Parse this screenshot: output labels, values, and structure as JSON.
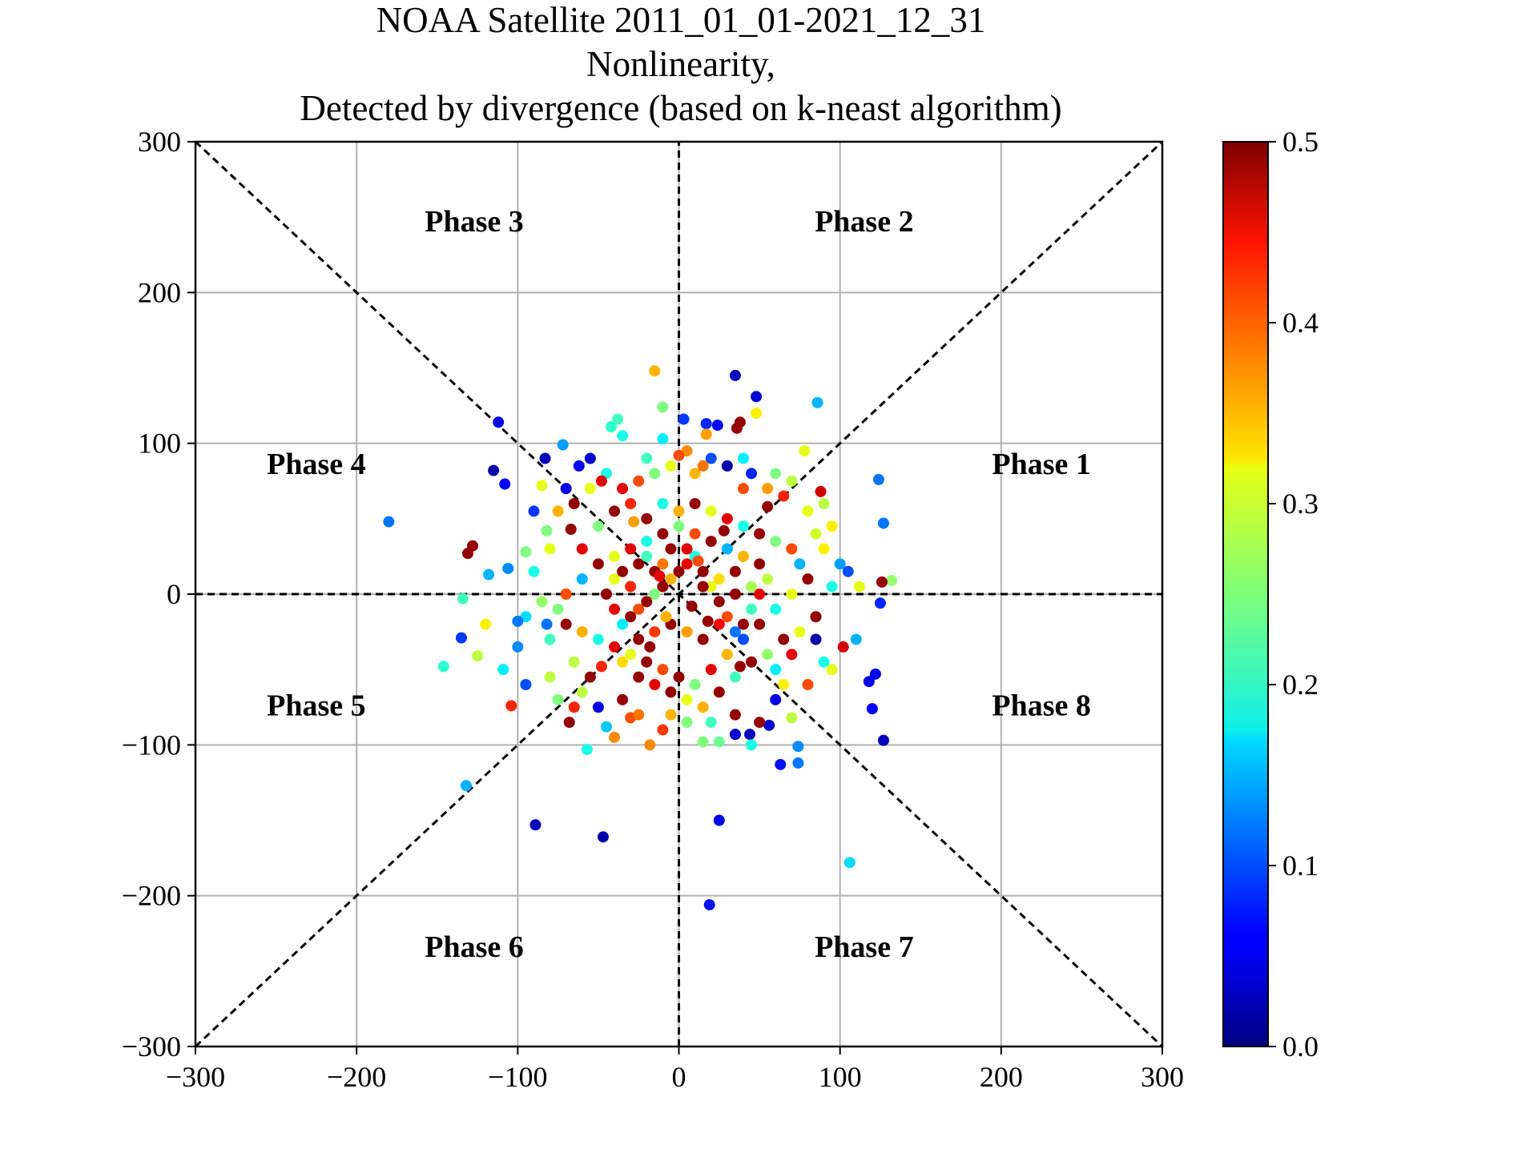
{
  "chart_data": {
    "type": "scatter",
    "title_lines": [
      "NOAA Satellite 2011_01_01-2021_12_31",
      "Nonlinearity,",
      "Detected by divergence (based on k-neast algorithm)"
    ],
    "xlabel": "",
    "ylabel": "",
    "xlim": [
      -300,
      300
    ],
    "ylim": [
      -300,
      300
    ],
    "xticks": [
      -300,
      -200,
      -100,
      0,
      100,
      200,
      300
    ],
    "yticks": [
      -300,
      -200,
      -100,
      0,
      100,
      200,
      300
    ],
    "tick_labels_x": [
      "−300",
      "−200",
      "−100",
      "0",
      "100",
      "200",
      "300"
    ],
    "tick_labels_y": [
      "−300",
      "−200",
      "−100",
      "0",
      "100",
      "200",
      "300"
    ],
    "grid": true,
    "colormap": "jet",
    "colorbar": {
      "range": [
        0.0,
        0.5
      ],
      "ticks": [
        0.0,
        0.1,
        0.2,
        0.3,
        0.4,
        0.5
      ],
      "tick_labels": [
        "0.0",
        "0.1",
        "0.2",
        "0.3",
        "0.4",
        "0.5"
      ]
    },
    "phase_labels": [
      {
        "label": "Phase 1",
        "x": 225,
        "y": 87
      },
      {
        "label": "Phase 2",
        "x": 115,
        "y": 248
      },
      {
        "label": "Phase 3",
        "x": -127,
        "y": 248
      },
      {
        "label": "Phase 4",
        "x": -225,
        "y": 87
      },
      {
        "label": "Phase 5",
        "x": -225,
        "y": -73
      },
      {
        "label": "Phase 6",
        "x": -127,
        "y": -233
      },
      {
        "label": "Phase 7",
        "x": 115,
        "y": -233
      },
      {
        "label": "Phase 8",
        "x": 225,
        "y": -73
      }
    ],
    "reference_lines": [
      {
        "x": [
          -300,
          300
        ],
        "y": [
          0,
          0
        ],
        "style": "dashed"
      },
      {
        "x": [
          0,
          0
        ],
        "y": [
          -300,
          300
        ],
        "style": "dashed"
      },
      {
        "x": [
          -300,
          300
        ],
        "y": [
          -300,
          300
        ],
        "style": "dashed"
      },
      {
        "x": [
          -300,
          300
        ],
        "y": [
          300,
          -300
        ],
        "style": "dashed"
      }
    ],
    "points": [
      [
        -180,
        48,
        0.12
      ],
      [
        -112,
        114,
        0.05
      ],
      [
        -115,
        82,
        0.02
      ],
      [
        -108,
        73,
        0.06
      ],
      [
        -83,
        90,
        0.03
      ],
      [
        -72,
        99,
        0.14
      ],
      [
        -62,
        85,
        0.06
      ],
      [
        35,
        145,
        0.03
      ],
      [
        48,
        131,
        0.04
      ],
      [
        86,
        127,
        0.15
      ],
      [
        -15,
        148,
        0.35
      ],
      [
        -10,
        124,
        0.25
      ],
      [
        -38,
        116,
        0.22
      ],
      [
        -42,
        111,
        0.21
      ],
      [
        -35,
        105,
        0.2
      ],
      [
        3,
        116,
        0.09
      ],
      [
        17,
        113,
        0.08
      ],
      [
        24,
        112,
        0.06
      ],
      [
        36,
        110,
        0.49
      ],
      [
        38,
        114,
        0.49
      ],
      [
        48,
        120,
        0.32
      ],
      [
        17,
        106,
        0.36
      ],
      [
        -10,
        103,
        0.18
      ],
      [
        5,
        95,
        0.37
      ],
      [
        78,
        95,
        0.3
      ],
      [
        88,
        68,
        0.46
      ],
      [
        124,
        76,
        0.12
      ],
      [
        127,
        47,
        0.12
      ],
      [
        132,
        9,
        0.26
      ],
      [
        126,
        8,
        0.49
      ],
      [
        125,
        -6,
        0.08
      ],
      [
        120,
        -76,
        0.06
      ],
      [
        122,
        -53,
        0.05
      ],
      [
        118,
        -58,
        0.05
      ],
      [
        127,
        -97,
        0.03
      ],
      [
        106,
        -178,
        0.17
      ],
      [
        74,
        -101,
        0.13
      ],
      [
        74,
        -112,
        0.12
      ],
      [
        63,
        -113,
        0.07
      ],
      [
        56,
        -87,
        0.04
      ],
      [
        44,
        -93,
        0.03
      ],
      [
        35,
        -93,
        0.04
      ],
      [
        25,
        -150,
        0.05
      ],
      [
        19,
        -206,
        0.07
      ],
      [
        -47,
        -161,
        0.02
      ],
      [
        -89,
        -153,
        0.03
      ],
      [
        -132,
        -127,
        0.15
      ],
      [
        -146,
        -48,
        0.21
      ],
      [
        -135,
        -29,
        0.09
      ],
      [
        -104,
        -74,
        0.42
      ],
      [
        -134,
        -3,
        0.22
      ],
      [
        -118,
        13,
        0.15
      ],
      [
        -106,
        17,
        0.13
      ],
      [
        -128,
        32,
        0.49
      ],
      [
        -131,
        27,
        0.49
      ],
      [
        -120,
        -20,
        0.32
      ],
      [
        -125,
        -41,
        0.28
      ],
      [
        -109,
        -50,
        0.18
      ],
      [
        -100,
        -35,
        0.13
      ],
      [
        -95,
        28,
        0.25
      ],
      [
        -85,
        72,
        0.3
      ],
      [
        -90,
        55,
        0.09
      ],
      [
        -67,
        43,
        0.49
      ],
      [
        -82,
        42,
        0.25
      ],
      [
        -95,
        -15,
        0.17
      ],
      [
        -82,
        -20,
        0.12
      ],
      [
        -68,
        -85,
        0.49
      ],
      [
        -57,
        -103,
        0.2
      ],
      [
        -40,
        -95,
        0.37
      ],
      [
        -18,
        -100,
        0.37
      ],
      [
        -60,
        -65,
        0.28
      ],
      [
        -45,
        -88,
        0.16
      ],
      [
        -30,
        -82,
        0.4
      ],
      [
        -10,
        -90,
        0.41
      ],
      [
        15,
        -98,
        0.25
      ],
      [
        25,
        -98,
        0.24
      ],
      [
        45,
        -100,
        0.2
      ],
      [
        70,
        -82,
        0.28
      ],
      [
        65,
        -60,
        0.32
      ],
      [
        80,
        -60,
        0.4
      ],
      [
        95,
        -50,
        0.3
      ],
      [
        102,
        -35,
        0.46
      ],
      [
        110,
        -30,
        0.15
      ],
      [
        100,
        20,
        0.14
      ],
      [
        90,
        30,
        0.32
      ],
      [
        105,
        15,
        0.1
      ],
      [
        112,
        5,
        0.3
      ],
      [
        95,
        5,
        0.2
      ],
      [
        85,
        40,
        0.29
      ],
      [
        95,
        45,
        0.32
      ],
      [
        70,
        75,
        0.28
      ],
      [
        60,
        80,
        0.25
      ],
      [
        45,
        80,
        0.08
      ],
      [
        40,
        70,
        0.4
      ],
      [
        30,
        85,
        0.02
      ],
      [
        20,
        90,
        0.1
      ],
      [
        10,
        80,
        0.35
      ],
      [
        -5,
        85,
        0.3
      ],
      [
        -15,
        80,
        0.25
      ],
      [
        -25,
        75,
        0.4
      ],
      [
        -35,
        70,
        0.45
      ],
      [
        -45,
        80,
        0.2
      ],
      [
        -55,
        70,
        0.3
      ],
      [
        -65,
        60,
        0.49
      ],
      [
        -75,
        55,
        0.35
      ],
      [
        -60,
        30,
        0.45
      ],
      [
        -50,
        45,
        0.25
      ],
      [
        -40,
        55,
        0.49
      ],
      [
        -30,
        60,
        0.42
      ],
      [
        -20,
        50,
        0.49
      ],
      [
        -10,
        60,
        0.2
      ],
      [
        0,
        55,
        0.35
      ],
      [
        10,
        60,
        0.49
      ],
      [
        20,
        55,
        0.3
      ],
      [
        30,
        50,
        0.45
      ],
      [
        40,
        45,
        0.2
      ],
      [
        50,
        40,
        0.49
      ],
      [
        60,
        35,
        0.25
      ],
      [
        70,
        30,
        0.4
      ],
      [
        75,
        20,
        0.15
      ],
      [
        80,
        10,
        0.49
      ],
      [
        70,
        0,
        0.3
      ],
      [
        60,
        -10,
        0.2
      ],
      [
        50,
        -20,
        0.49
      ],
      [
        40,
        -30,
        0.1
      ],
      [
        30,
        -40,
        0.35
      ],
      [
        20,
        -50,
        0.45
      ],
      [
        10,
        -60,
        0.25
      ],
      [
        0,
        -55,
        0.49
      ],
      [
        -10,
        -50,
        0.4
      ],
      [
        -20,
        -45,
        0.49
      ],
      [
        -30,
        -40,
        0.3
      ],
      [
        -40,
        -35,
        0.45
      ],
      [
        -50,
        -30,
        0.2
      ],
      [
        -60,
        -25,
        0.35
      ],
      [
        -70,
        -20,
        0.49
      ],
      [
        -75,
        -10,
        0.25
      ],
      [
        -70,
        0,
        0.4
      ],
      [
        -60,
        10,
        0.15
      ],
      [
        -50,
        20,
        0.49
      ],
      [
        -40,
        25,
        0.3
      ],
      [
        -30,
        30,
        0.45
      ],
      [
        -20,
        35,
        0.2
      ],
      [
        -10,
        40,
        0.49
      ],
      [
        0,
        45,
        0.25
      ],
      [
        10,
        40,
        0.4
      ],
      [
        20,
        35,
        0.49
      ],
      [
        30,
        30,
        0.15
      ],
      [
        40,
        25,
        0.35
      ],
      [
        50,
        20,
        0.49
      ],
      [
        55,
        10,
        0.28
      ],
      [
        50,
        0,
        0.45
      ],
      [
        45,
        -10,
        0.22
      ],
      [
        40,
        -20,
        0.49
      ],
      [
        35,
        -25,
        0.12
      ],
      [
        30,
        -15,
        0.4
      ],
      [
        25,
        -5,
        0.49
      ],
      [
        20,
        5,
        0.3
      ],
      [
        15,
        15,
        0.49
      ],
      [
        10,
        25,
        0.2
      ],
      [
        5,
        20,
        0.45
      ],
      [
        0,
        15,
        0.49
      ],
      [
        -5,
        10,
        0.35
      ],
      [
        -10,
        5,
        0.49
      ],
      [
        -15,
        0,
        0.25
      ],
      [
        -20,
        -5,
        0.49
      ],
      [
        -25,
        -10,
        0.4
      ],
      [
        -30,
        -15,
        0.49
      ],
      [
        -35,
        -20,
        0.18
      ],
      [
        -40,
        -10,
        0.45
      ],
      [
        -45,
        0,
        0.49
      ],
      [
        -40,
        10,
        0.3
      ],
      [
        -35,
        15,
        0.49
      ],
      [
        -30,
        5,
        0.42
      ],
      [
        -25,
        20,
        0.49
      ],
      [
        -20,
        25,
        0.22
      ],
      [
        -15,
        15,
        0.49
      ],
      [
        -10,
        20,
        0.38
      ],
      [
        -5,
        30,
        0.49
      ],
      [
        5,
        30,
        0.45
      ],
      [
        15,
        5,
        0.49
      ],
      [
        25,
        10,
        0.33
      ],
      [
        35,
        15,
        0.49
      ],
      [
        45,
        5,
        0.27
      ],
      [
        35,
        0,
        0.49
      ],
      [
        25,
        -20,
        0.44
      ],
      [
        15,
        -30,
        0.49
      ],
      [
        5,
        -25,
        0.36
      ],
      [
        -5,
        -20,
        0.49
      ],
      [
        -15,
        -25,
        0.41
      ],
      [
        -25,
        -30,
        0.49
      ],
      [
        -35,
        -45,
        0.33
      ],
      [
        -25,
        -55,
        0.49
      ],
      [
        -15,
        -60,
        0.45
      ],
      [
        -5,
        -65,
        0.49
      ],
      [
        5,
        -70,
        0.3
      ],
      [
        15,
        -75,
        0.35
      ],
      [
        25,
        -65,
        0.49
      ],
      [
        35,
        -55,
        0.22
      ],
      [
        45,
        -45,
        0.49
      ],
      [
        55,
        -40,
        0.26
      ],
      [
        65,
        -30,
        0.49
      ],
      [
        60,
        -50,
        0.18
      ],
      [
        70,
        -40,
        0.45
      ],
      [
        75,
        -25,
        0.3
      ],
      [
        85,
        -15,
        0.49
      ],
      [
        80,
        55,
        0.3
      ],
      [
        90,
        60,
        0.28
      ],
      [
        65,
        65,
        0.42
      ],
      [
        55,
        58,
        0.49
      ],
      [
        -55,
        -55,
        0.49
      ],
      [
        -65,
        -45,
        0.28
      ],
      [
        -80,
        -30,
        0.22
      ],
      [
        -85,
        -5,
        0.26
      ],
      [
        -90,
        15,
        0.2
      ],
      [
        -80,
        30,
        0.3
      ],
      [
        -70,
        70,
        0.05
      ],
      [
        -55,
        90,
        0.04
      ],
      [
        -48,
        75,
        0.45
      ],
      [
        -20,
        90,
        0.22
      ],
      [
        0,
        92,
        0.4
      ],
      [
        15,
        85,
        0.38
      ],
      [
        40,
        90,
        0.18
      ],
      [
        55,
        70,
        0.36
      ],
      [
        -95,
        -60,
        0.1
      ],
      [
        -80,
        -55,
        0.28
      ],
      [
        -75,
        -70,
        0.25
      ],
      [
        -65,
        -75,
        0.42
      ],
      [
        -50,
        -75,
        0.05
      ],
      [
        -35,
        -70,
        0.49
      ],
      [
        -25,
        -80,
        0.38
      ],
      [
        -5,
        -80,
        0.35
      ],
      [
        5,
        -85,
        0.25
      ],
      [
        20,
        -85,
        0.22
      ],
      [
        35,
        -80,
        0.49
      ],
      [
        50,
        -85,
        0.49
      ],
      [
        60,
        -70,
        0.05
      ],
      [
        85,
        -30,
        0.02
      ],
      [
        90,
        -45,
        0.2
      ],
      [
        -100,
        -18,
        0.12
      ],
      [
        -12,
        12,
        0.45
      ],
      [
        8,
        -8,
        0.49
      ],
      [
        -8,
        -15,
        0.35
      ],
      [
        12,
        22,
        0.4
      ],
      [
        -18,
        -35,
        0.49
      ],
      [
        28,
        42,
        0.49
      ],
      [
        -28,
        48,
        0.36
      ],
      [
        38,
        -48,
        0.49
      ],
      [
        -48,
        -48,
        0.42
      ],
      [
        18,
        -18,
        0.49
      ]
    ]
  }
}
